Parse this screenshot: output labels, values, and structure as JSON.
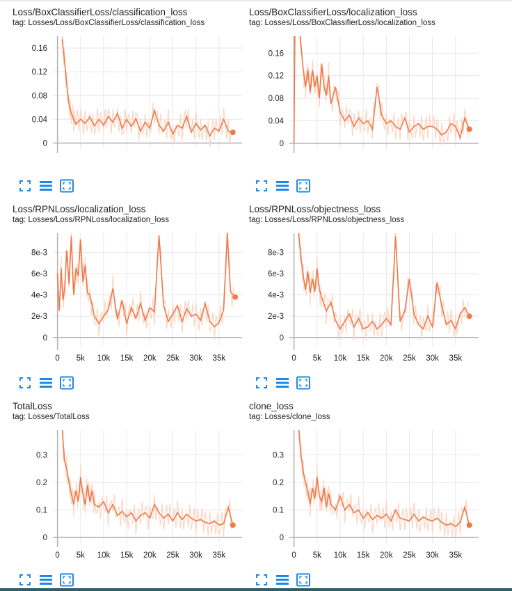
{
  "colors": {
    "line": "#f0794a",
    "faint": "#fbd5c3",
    "axis": "#b0b0b0",
    "grid": "#e6e6e6",
    "icon": "#1e88e5"
  },
  "icons": {
    "fit": "fit-domain-icon",
    "log": "toggle-log-scale-icon",
    "expand": "expand-chart-icon"
  },
  "cards": [
    {
      "title": "Loss/BoxClassifierLoss/classification_loss",
      "tag": "tag: Losses/Loss/BoxClassifierLoss/classification_loss"
    },
    {
      "title": "Loss/BoxClassifierLoss/localization_loss",
      "tag": "tag: Losses/Loss/BoxClassifierLoss/localization_loss"
    },
    {
      "title": "Loss/RPNLoss/localization_loss",
      "tag": "tag: Losses/Loss/RPNLoss/localization_loss"
    },
    {
      "title": "Loss/RPNLoss/objectness_loss",
      "tag": "tag: Losses/Loss/RPNLoss/objectness_loss"
    },
    {
      "title": "TotalLoss",
      "tag": "tag: Losses/TotalLoss"
    },
    {
      "title": "clone_loss",
      "tag": "tag: Losses/clone_loss"
    }
  ],
  "chart_data": [
    {
      "type": "line",
      "title": "Loss/BoxClassifierLoss/classification_loss",
      "xlim": [
        -1000,
        40000
      ],
      "ylim": [
        -0.01,
        0.18
      ],
      "show_x_ticks": false,
      "x_ticks": [],
      "y_ticks": [
        0,
        0.04,
        0.08,
        0.12,
        0.16
      ],
      "y_tick_labels": [
        "0",
        "0.04",
        "0.08",
        "0.12",
        "0.16"
      ],
      "series": [
        {
          "x": [
            1000,
            1500,
            2000,
            2500,
            3000,
            3500,
            4000,
            5000,
            6000,
            7000,
            8000,
            9000,
            10000,
            11000,
            12000,
            13000,
            14000,
            15000,
            16000,
            17000,
            18000,
            19000,
            20000,
            21000,
            22000,
            23000,
            24000,
            25000,
            26000,
            27000,
            28000,
            29000,
            30000,
            31000,
            32000,
            33000,
            34000,
            35000,
            36000,
            37000,
            38000
          ],
          "y": [
            0.175,
            0.14,
            0.1,
            0.065,
            0.05,
            0.04,
            0.032,
            0.04,
            0.033,
            0.044,
            0.029,
            0.04,
            0.03,
            0.045,
            0.035,
            0.05,
            0.025,
            0.04,
            0.028,
            0.041,
            0.02,
            0.035,
            0.025,
            0.055,
            0.03,
            0.02,
            0.035,
            0.015,
            0.03,
            0.025,
            0.045,
            0.018,
            0.033,
            0.022,
            0.03,
            0.012,
            0.025,
            0.02,
            0.04,
            0.02,
            0.018
          ]
        }
      ]
    },
    {
      "type": "line",
      "title": "Loss/BoxClassifierLoss/localization_loss",
      "xlim": [
        -1000,
        40000
      ],
      "ylim": [
        -0.01,
        0.19
      ],
      "show_x_ticks": false,
      "x_ticks": [],
      "y_ticks": [
        0,
        0.04,
        0.08,
        0.12,
        0.16
      ],
      "y_tick_labels": [
        "0",
        "0.04",
        "0.08",
        "0.12",
        "0.16"
      ],
      "series": [
        {
          "x": [
            0,
            300,
            1000,
            2000,
            2500,
            3000,
            3500,
            4000,
            4500,
            5000,
            5500,
            6000,
            6500,
            7000,
            7500,
            8000,
            9000,
            10000,
            11000,
            12000,
            13000,
            14000,
            15000,
            16000,
            17000,
            18000,
            19000,
            20000,
            21000,
            22000,
            23000,
            24000,
            25000,
            26000,
            27000,
            28000,
            29000,
            30000,
            31000,
            32000,
            33000,
            34000,
            35000,
            36000,
            37000,
            38000
          ],
          "y": [
            0,
            0.3,
            0.22,
            0.13,
            0.1,
            0.13,
            0.09,
            0.13,
            0.1,
            0.12,
            0.08,
            0.14,
            0.1,
            0.085,
            0.12,
            0.07,
            0.1,
            0.055,
            0.04,
            0.05,
            0.03,
            0.045,
            0.035,
            0.04,
            0.025,
            0.1,
            0.05,
            0.035,
            0.04,
            0.03,
            0.025,
            0.045,
            0.02,
            0.03,
            0.035,
            0.025,
            0.03,
            0.03,
            0.025,
            0.015,
            0.02,
            0.035,
            0.03,
            0.01,
            0.045,
            0.025
          ]
        }
      ]
    },
    {
      "type": "line",
      "title": "Loss/RPNLoss/localization_loss",
      "xlim": [
        -1000,
        40000
      ],
      "ylim": [
        -0.0008,
        0.0098
      ],
      "show_x_ticks": true,
      "x_ticks": [
        0,
        5000,
        10000,
        15000,
        20000,
        25000,
        30000,
        35000
      ],
      "x_tick_labels": [
        "0",
        "5k",
        "10k",
        "15k",
        "20k",
        "25k",
        "30k",
        "35k"
      ],
      "y_ticks": [
        0,
        0.002,
        0.004,
        0.006,
        0.008
      ],
      "y_tick_labels": [
        "0",
        "2e-3",
        "4e-3",
        "6e-3",
        "8e-3"
      ],
      "series": [
        {
          "x": [
            0,
            400,
            800,
            1200,
            1600,
            2000,
            2500,
            3000,
            3500,
            4000,
            4500,
            5000,
            5500,
            6000,
            6500,
            7000,
            8000,
            9000,
            10000,
            11000,
            12000,
            13000,
            14000,
            15000,
            16000,
            17000,
            18000,
            19000,
            20000,
            21000,
            22000,
            23000,
            24000,
            25000,
            26000,
            27000,
            28000,
            29000,
            30000,
            31000,
            32000,
            33000,
            34000,
            35000,
            36000,
            36800,
            37500,
            38500
          ],
          "y": [
            0.006,
            0.0025,
            0.0065,
            0.0035,
            0.0048,
            0.0082,
            0.005,
            0.0095,
            0.004,
            0.0065,
            0.0058,
            0.0092,
            0.0052,
            0.0068,
            0.0042,
            0.004,
            0.002,
            0.0013,
            0.002,
            0.0026,
            0.0046,
            0.0017,
            0.0035,
            0.0013,
            0.0028,
            0.0018,
            0.0032,
            0.0016,
            0.0028,
            0.0024,
            0.0096,
            0.003,
            0.0015,
            0.0022,
            0.003,
            0.0015,
            0.0027,
            0.002,
            0.0022,
            0.0016,
            0.0032,
            0.0015,
            0.001,
            0.0014,
            0.0026,
            0.0098,
            0.0043,
            0.0038
          ]
        }
      ]
    },
    {
      "type": "line",
      "title": "Loss/RPNLoss/objectness_loss",
      "xlim": [
        -1000,
        40000
      ],
      "ylim": [
        -0.0008,
        0.0098
      ],
      "show_x_ticks": true,
      "x_ticks": [
        0,
        5000,
        10000,
        15000,
        20000,
        25000,
        30000,
        35000
      ],
      "x_tick_labels": [
        "0",
        "5k",
        "10k",
        "15k",
        "20k",
        "25k",
        "30k",
        "35k"
      ],
      "y_ticks": [
        0,
        0.002,
        0.004,
        0.006,
        0.008
      ],
      "y_tick_labels": [
        "0",
        "2e-3",
        "4e-3",
        "6e-3",
        "8e-3"
      ],
      "series": [
        {
          "x": [
            1000,
            1500,
            2000,
            2500,
            3000,
            3500,
            4000,
            4500,
            5000,
            5500,
            6000,
            7000,
            8000,
            9000,
            10000,
            11000,
            12000,
            13000,
            14000,
            15000,
            16000,
            17000,
            18000,
            19000,
            20000,
            21000,
            22000,
            23000,
            24000,
            25000,
            26000,
            27000,
            28000,
            29000,
            30000,
            31000,
            32000,
            33000,
            34000,
            35000,
            36000,
            37000,
            38000
          ],
          "y": [
            0.0098,
            0.0075,
            0.0058,
            0.0045,
            0.0062,
            0.0042,
            0.0055,
            0.0043,
            0.0065,
            0.0045,
            0.0038,
            0.0025,
            0.0033,
            0.0016,
            0.0008,
            0.0015,
            0.0022,
            0.001,
            0.0018,
            0.0008,
            0.001,
            0.0015,
            0.0008,
            0.0012,
            0.0018,
            0.0012,
            0.0095,
            0.0015,
            0.0025,
            0.0055,
            0.0022,
            0.0012,
            0.0008,
            0.002,
            0.001,
            0.0052,
            0.003,
            0.0012,
            0.0016,
            0.0008,
            0.0022,
            0.0028,
            0.002
          ]
        }
      ]
    },
    {
      "type": "line",
      "title": "TotalLoss",
      "xlim": [
        -1000,
        40000
      ],
      "ylim": [
        -0.02,
        0.39
      ],
      "show_x_ticks": true,
      "x_ticks": [
        0,
        5000,
        10000,
        15000,
        20000,
        25000,
        30000,
        35000
      ],
      "x_tick_labels": [
        "0",
        "5k",
        "10k",
        "15k",
        "20k",
        "25k",
        "30k",
        "35k"
      ],
      "y_ticks": [
        0,
        0.1,
        0.2,
        0.3
      ],
      "y_tick_labels": [
        "0",
        "0.1",
        "0.2",
        "0.3"
      ],
      "series": [
        {
          "x": [
            1000,
            1500,
            2000,
            2500,
            3000,
            3500,
            4000,
            4500,
            5000,
            5500,
            6000,
            6500,
            7000,
            7500,
            8000,
            9000,
            10000,
            11000,
            12000,
            13000,
            14000,
            15000,
            16000,
            17000,
            18000,
            19000,
            20000,
            21000,
            22000,
            23000,
            24000,
            25000,
            26000,
            27000,
            28000,
            29000,
            30000,
            31000,
            32000,
            33000,
            34000,
            35000,
            36000,
            37000,
            38000
          ],
          "y": [
            0.4,
            0.28,
            0.25,
            0.2,
            0.16,
            0.12,
            0.17,
            0.13,
            0.22,
            0.16,
            0.12,
            0.19,
            0.13,
            0.17,
            0.12,
            0.11,
            0.13,
            0.09,
            0.12,
            0.08,
            0.095,
            0.075,
            0.09,
            0.06,
            0.08,
            0.09,
            0.07,
            0.12,
            0.09,
            0.07,
            0.085,
            0.06,
            0.09,
            0.065,
            0.085,
            0.07,
            0.06,
            0.065,
            0.055,
            0.05,
            0.06,
            0.045,
            0.05,
            0.11,
            0.045
          ]
        }
      ]
    },
    {
      "type": "line",
      "title": "clone_loss",
      "xlim": [
        -1000,
        40000
      ],
      "ylim": [
        -0.02,
        0.39
      ],
      "show_x_ticks": true,
      "x_ticks": [
        0,
        5000,
        10000,
        15000,
        20000,
        25000,
        30000,
        35000
      ],
      "x_tick_labels": [
        "0",
        "5k",
        "10k",
        "15k",
        "20k",
        "25k",
        "30k",
        "35k"
      ],
      "y_ticks": [
        0,
        0.1,
        0.2,
        0.3
      ],
      "y_tick_labels": [
        "0",
        "0.1",
        "0.2",
        "0.3"
      ],
      "series": [
        {
          "x": [
            1000,
            1500,
            2000,
            2500,
            3000,
            3500,
            4000,
            4500,
            5000,
            5500,
            6000,
            6500,
            7000,
            7500,
            8000,
            9000,
            10000,
            11000,
            12000,
            13000,
            14000,
            15000,
            16000,
            17000,
            18000,
            19000,
            20000,
            21000,
            22000,
            23000,
            24000,
            25000,
            26000,
            27000,
            28000,
            29000,
            30000,
            31000,
            32000,
            33000,
            34000,
            35000,
            36000,
            37000,
            38000
          ],
          "y": [
            0.4,
            0.3,
            0.24,
            0.2,
            0.17,
            0.12,
            0.18,
            0.14,
            0.22,
            0.15,
            0.13,
            0.18,
            0.11,
            0.16,
            0.12,
            0.1,
            0.15,
            0.1,
            0.12,
            0.09,
            0.1,
            0.07,
            0.09,
            0.065,
            0.08,
            0.07,
            0.085,
            0.06,
            0.1,
            0.07,
            0.065,
            0.06,
            0.085,
            0.06,
            0.075,
            0.065,
            0.06,
            0.07,
            0.055,
            0.045,
            0.05,
            0.04,
            0.055,
            0.11,
            0.045
          ]
        }
      ]
    }
  ]
}
